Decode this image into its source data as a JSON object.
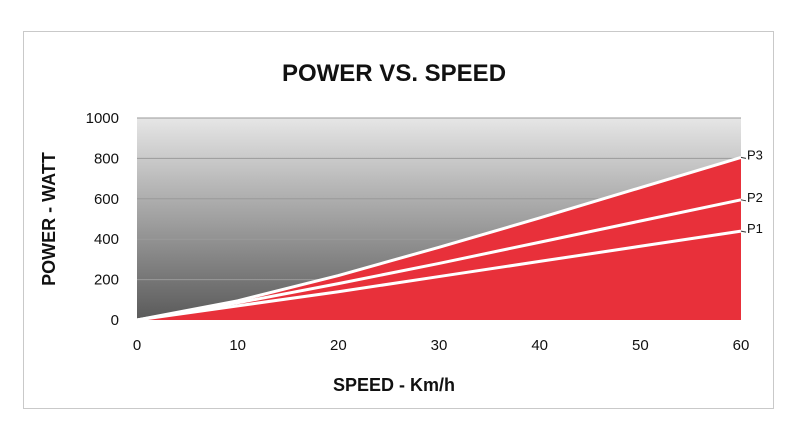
{
  "chart_data": {
    "type": "area",
    "title": "POWER VS. SPEED",
    "xlabel": "SPEED - Km/h",
    "ylabel": "POWER - WATT",
    "xlim": [
      0,
      60
    ],
    "ylim": [
      0,
      1000
    ],
    "x_ticks": [
      0,
      10,
      20,
      30,
      40,
      50,
      60
    ],
    "y_ticks": [
      0,
      200,
      400,
      600,
      800,
      1000
    ],
    "grid": true,
    "colors": {
      "fill": "#e8303a",
      "line": "#ffffff",
      "background_top": "#e6e6e6",
      "background_bottom": "#5a5a5a",
      "grid": "#9a9a9a"
    },
    "x": [
      0,
      10,
      20,
      30,
      40,
      50,
      60
    ],
    "series": [
      {
        "name": "P1",
        "values": [
          0,
          70,
          140,
          215,
          290,
          365,
          440
        ]
      },
      {
        "name": "P2",
        "values": [
          0,
          85,
          180,
          280,
          385,
          490,
          595
        ]
      },
      {
        "name": "P3",
        "values": [
          0,
          95,
          220,
          360,
          505,
          655,
          805
        ]
      }
    ]
  }
}
